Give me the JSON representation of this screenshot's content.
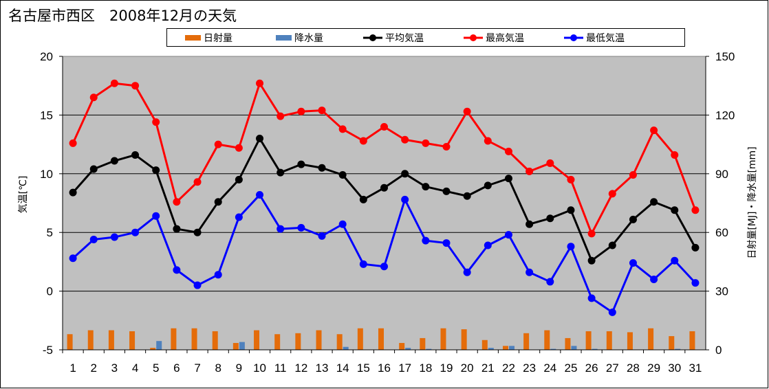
{
  "chart_data": {
    "type": "line",
    "title": "名古屋市西区　2008年12月の天気",
    "x": [
      1,
      2,
      3,
      4,
      5,
      6,
      7,
      8,
      9,
      10,
      11,
      12,
      13,
      14,
      15,
      16,
      17,
      18,
      19,
      20,
      21,
      22,
      23,
      24,
      25,
      26,
      27,
      28,
      29,
      30,
      31
    ],
    "x_tick_labels": [
      "1",
      "2",
      "3",
      "4",
      "5",
      "6",
      "7",
      "8",
      "9",
      "10",
      "11",
      "12",
      "13",
      "14",
      "15",
      "16",
      "17",
      "18",
      "19",
      "20",
      "21",
      "22",
      "23",
      "24",
      "25",
      "26",
      "27",
      "28",
      "29",
      "30",
      "31"
    ],
    "ylabel": "気温[℃]",
    "y2label": "日射量[MJ]・降水量[mm]",
    "ylim": [
      -5,
      20
    ],
    "y2lim": [
      0,
      150
    ],
    "y_ticks": [
      -5,
      0,
      5,
      10,
      15,
      20
    ],
    "y2_ticks": [
      0,
      30,
      60,
      90,
      120,
      150
    ],
    "grid": true,
    "legend_position": "top",
    "series": [
      {
        "name": "日射量",
        "kind": "bar",
        "axis": "right",
        "color": "#e46c0a",
        "values": [
          8,
          10,
          10,
          9.5,
          1,
          11,
          11,
          9.5,
          3.5,
          10,
          8,
          8.5,
          10,
          8,
          11,
          11,
          3.5,
          6,
          11,
          10.5,
          5,
          2,
          8.5,
          10,
          6,
          9.5,
          9.5,
          9,
          11,
          7,
          9.5
        ]
      },
      {
        "name": "降水量",
        "kind": "bar",
        "axis": "right",
        "color": "#4f81bd",
        "values": [
          0,
          0,
          0,
          0,
          4.5,
          0,
          0,
          0,
          4,
          0,
          0,
          0,
          0,
          1.5,
          0,
          0,
          1,
          0.5,
          0,
          0,
          1,
          2,
          0,
          0.5,
          2,
          0.5,
          0,
          0,
          0,
          0.5,
          0
        ]
      },
      {
        "name": "平均気温",
        "kind": "line",
        "axis": "left",
        "color": "#000000",
        "values": [
          8.4,
          10.4,
          11.1,
          11.6,
          10.3,
          5.3,
          5.0,
          7.6,
          9.5,
          13.0,
          10.1,
          10.8,
          10.5,
          9.9,
          7.8,
          8.8,
          10.0,
          8.9,
          8.5,
          8.1,
          9.0,
          9.6,
          5.7,
          6.2,
          6.9,
          2.6,
          3.9,
          6.1,
          7.6,
          6.9,
          3.7
        ]
      },
      {
        "name": "最高気温",
        "kind": "line",
        "axis": "left",
        "color": "#ff0000",
        "values": [
          12.6,
          16.5,
          17.7,
          17.5,
          14.4,
          7.6,
          9.3,
          12.5,
          12.2,
          17.7,
          14.9,
          15.3,
          15.4,
          13.8,
          12.8,
          14.0,
          12.9,
          12.6,
          12.3,
          15.3,
          12.8,
          11.9,
          10.2,
          10.9,
          9.5,
          4.9,
          8.3,
          9.9,
          13.7,
          11.6,
          6.9
        ]
      },
      {
        "name": "最低気温",
        "kind": "line",
        "axis": "left",
        "color": "#0000ff",
        "values": [
          2.8,
          4.4,
          4.6,
          5.0,
          6.4,
          1.8,
          0.5,
          1.4,
          6.3,
          8.2,
          5.3,
          5.4,
          4.7,
          5.7,
          2.3,
          2.1,
          7.8,
          4.3,
          4.1,
          1.6,
          3.9,
          4.8,
          1.6,
          0.8,
          3.8,
          -0.6,
          -1.8,
          2.4,
          1.0,
          2.6,
          0.7
        ]
      }
    ]
  }
}
